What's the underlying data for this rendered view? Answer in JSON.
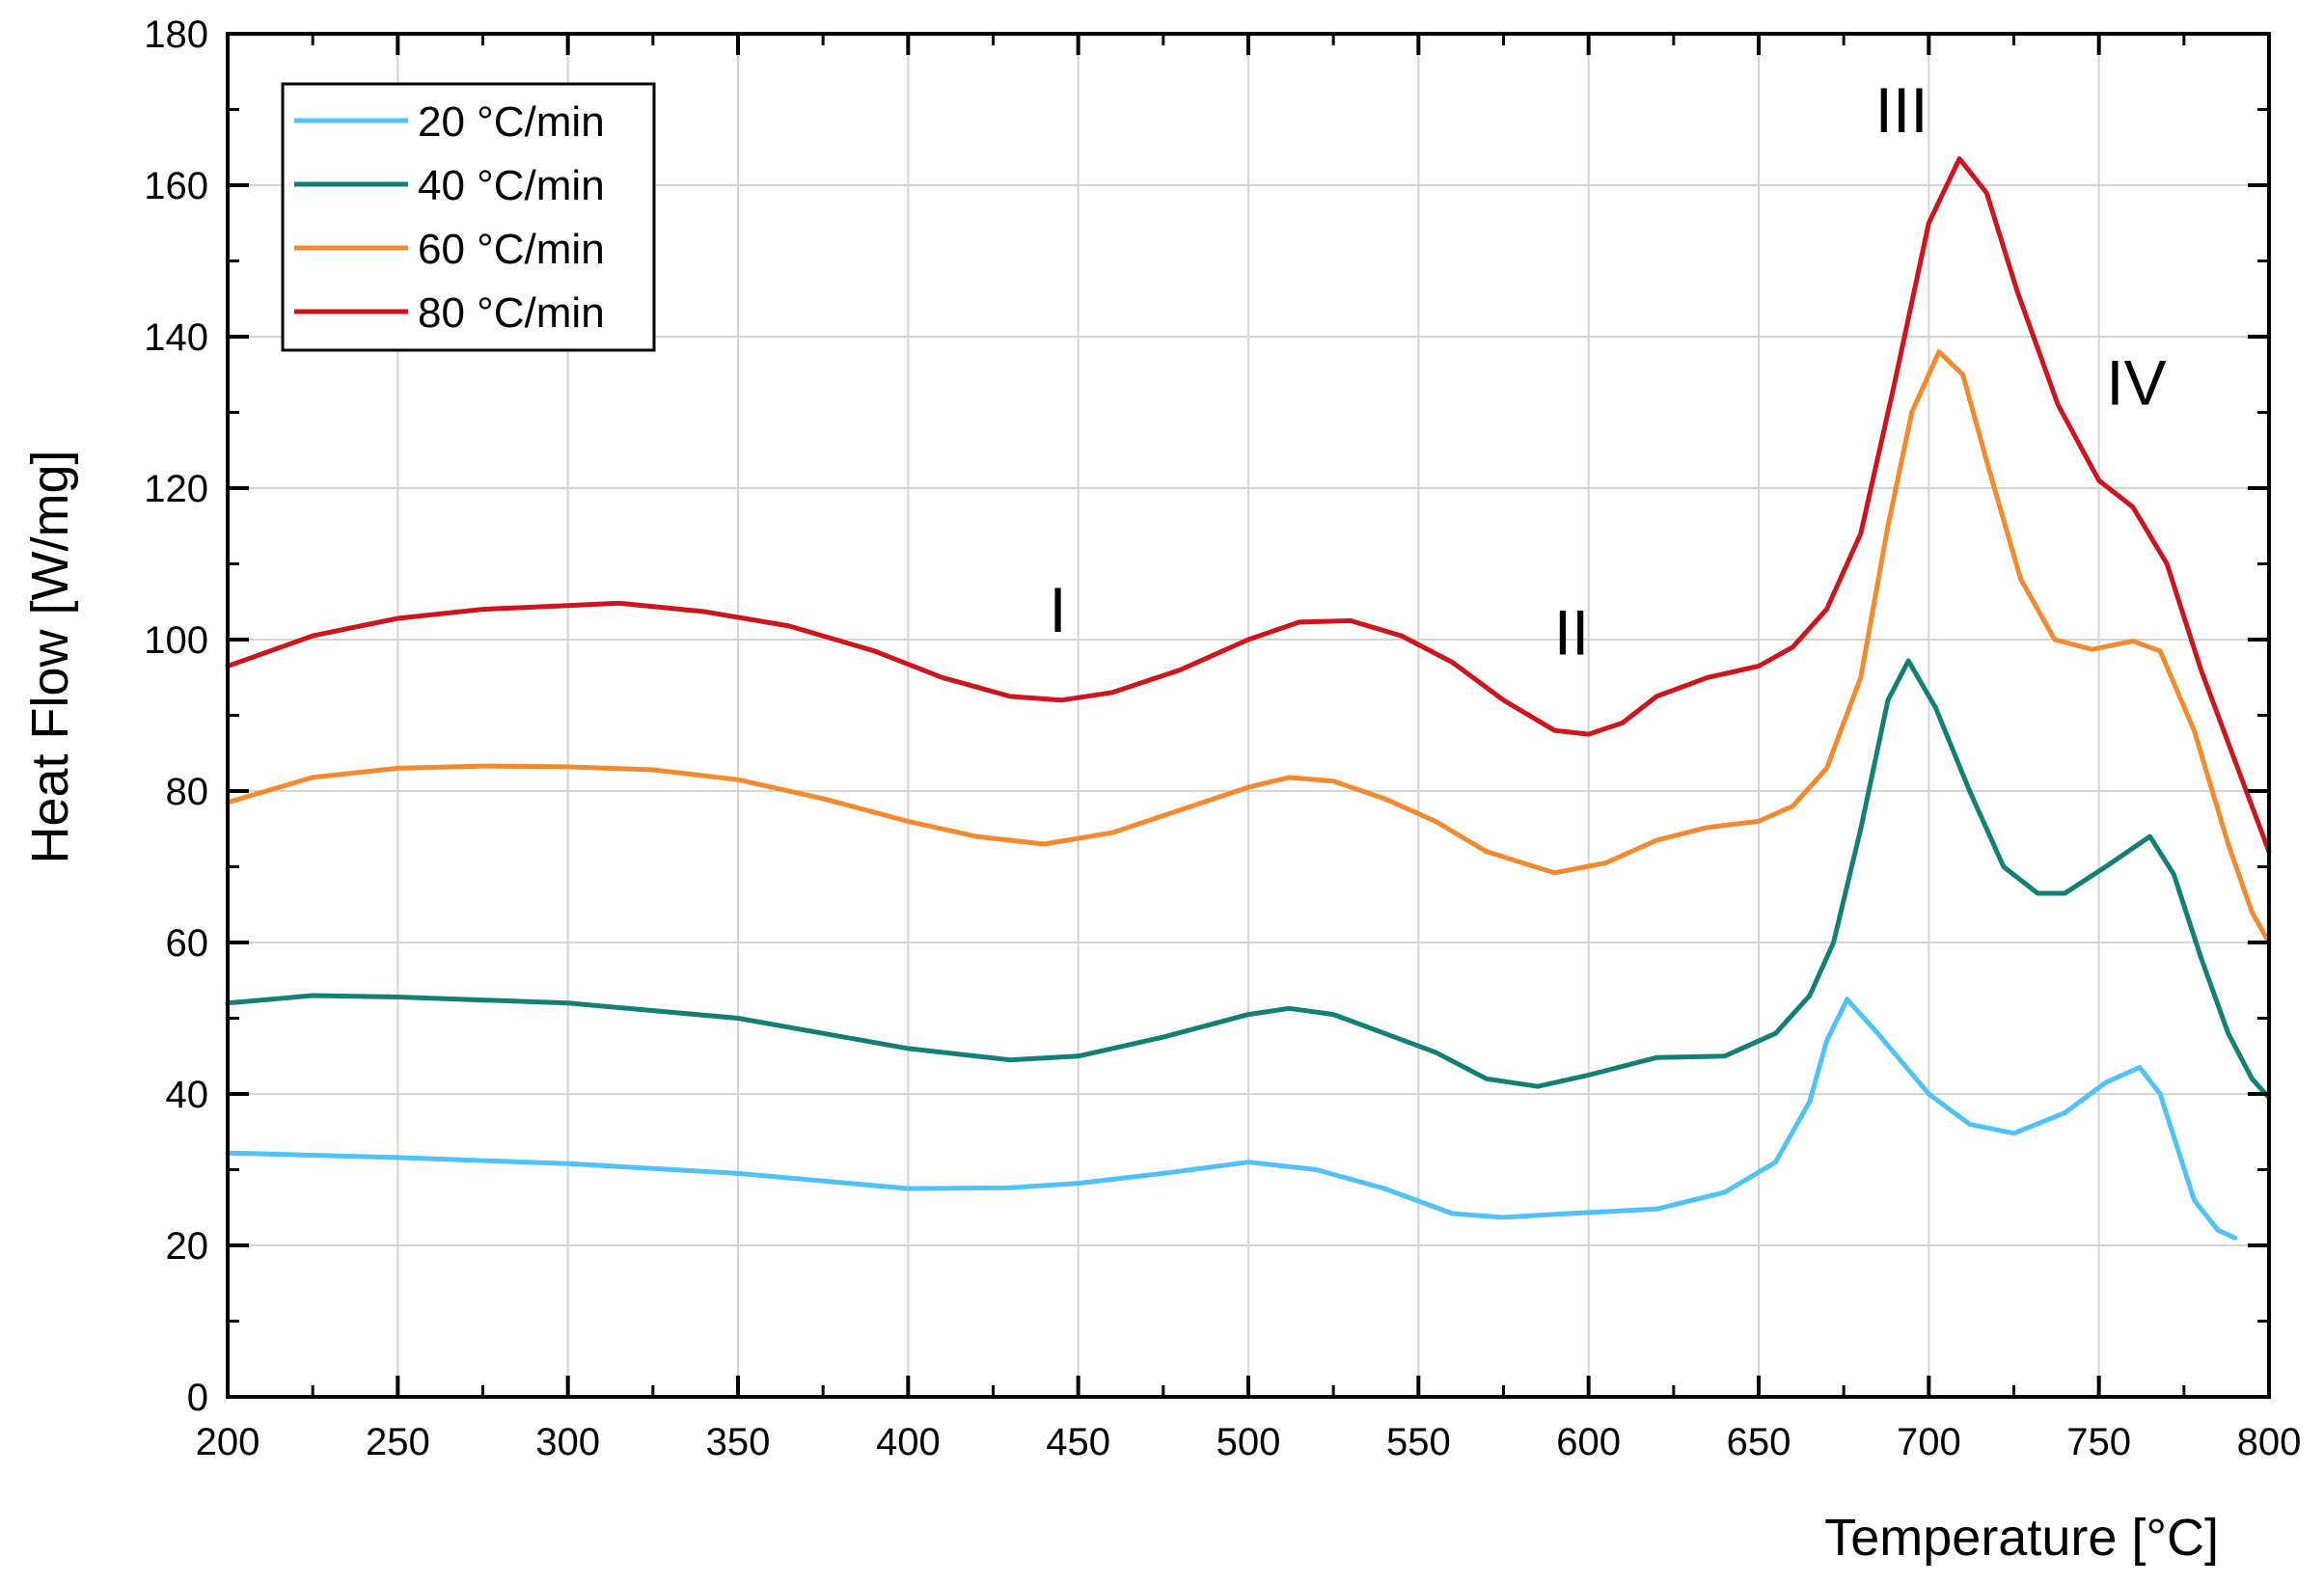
{
  "chart_data": {
    "type": "line",
    "title": "",
    "xlabel": "Temperature [°C]",
    "ylabel": "Heat Flow [W/mg]",
    "xlim": [
      200,
      800
    ],
    "ylim": [
      0,
      180
    ],
    "xticks": [
      200,
      250,
      300,
      350,
      400,
      450,
      500,
      550,
      600,
      650,
      700,
      750,
      800
    ],
    "yticks": [
      0,
      20,
      40,
      60,
      80,
      100,
      120,
      140,
      160,
      180
    ],
    "grid": true,
    "legend_position": "top-left",
    "series": [
      {
        "name": "20 °C/min",
        "color": "#4FC3F7",
        "points": [
          [
            200,
            32.2
          ],
          [
            250,
            31.6
          ],
          [
            300,
            30.8
          ],
          [
            350,
            29.5
          ],
          [
            400,
            27.5
          ],
          [
            430,
            27.6
          ],
          [
            450,
            28.2
          ],
          [
            475,
            29.5
          ],
          [
            500,
            31.0
          ],
          [
            520,
            30.0
          ],
          [
            540,
            27.5
          ],
          [
            560,
            24.2
          ],
          [
            575,
            23.7
          ],
          [
            590,
            24.1
          ],
          [
            620,
            24.8
          ],
          [
            640,
            27.0
          ],
          [
            655,
            31.0
          ],
          [
            665,
            39.0
          ],
          [
            670,
            47.0
          ],
          [
            676,
            52.5
          ],
          [
            685,
            48.0
          ],
          [
            700,
            40.0
          ],
          [
            712,
            36.0
          ],
          [
            725,
            34.8
          ],
          [
            740,
            37.5
          ],
          [
            752,
            41.5
          ],
          [
            762,
            43.5
          ],
          [
            768,
            40.0
          ],
          [
            773,
            33.0
          ],
          [
            778,
            26.0
          ],
          [
            785,
            22.0
          ],
          [
            790,
            21.0
          ]
        ]
      },
      {
        "name": "40 °C/min",
        "color": "#138075",
        "points": [
          [
            200,
            52.0
          ],
          [
            225,
            53.0
          ],
          [
            250,
            52.8
          ],
          [
            300,
            52.0
          ],
          [
            350,
            50.0
          ],
          [
            400,
            46.0
          ],
          [
            430,
            44.5
          ],
          [
            450,
            45.0
          ],
          [
            475,
            47.5
          ],
          [
            500,
            50.5
          ],
          [
            512,
            51.3
          ],
          [
            525,
            50.5
          ],
          [
            540,
            48.0
          ],
          [
            555,
            45.5
          ],
          [
            570,
            42.0
          ],
          [
            585,
            41.0
          ],
          [
            600,
            42.5
          ],
          [
            620,
            44.8
          ],
          [
            640,
            45.0
          ],
          [
            655,
            48.0
          ],
          [
            665,
            53.0
          ],
          [
            672,
            60.0
          ],
          [
            680,
            75.0
          ],
          [
            688,
            92.0
          ],
          [
            694,
            97.2
          ],
          [
            702,
            91.0
          ],
          [
            712,
            80.0
          ],
          [
            722,
            70.0
          ],
          [
            732,
            66.5
          ],
          [
            740,
            66.5
          ],
          [
            752,
            70.0
          ],
          [
            765,
            74.0
          ],
          [
            772,
            69.0
          ],
          [
            780,
            58.0
          ],
          [
            788,
            48.0
          ],
          [
            795,
            42.0
          ],
          [
            800,
            39.5
          ]
        ]
      },
      {
        "name": "60 °C/min",
        "color": "#F5892E",
        "points": [
          [
            200,
            78.5
          ],
          [
            225,
            81.8
          ],
          [
            250,
            83.0
          ],
          [
            275,
            83.3
          ],
          [
            300,
            83.2
          ],
          [
            325,
            82.8
          ],
          [
            350,
            81.5
          ],
          [
            375,
            79.0
          ],
          [
            400,
            76.0
          ],
          [
            420,
            74.0
          ],
          [
            440,
            73.0
          ],
          [
            460,
            74.5
          ],
          [
            480,
            77.5
          ],
          [
            500,
            80.5
          ],
          [
            512,
            81.8
          ],
          [
            525,
            81.3
          ],
          [
            540,
            79.0
          ],
          [
            555,
            76.0
          ],
          [
            570,
            72.0
          ],
          [
            590,
            69.2
          ],
          [
            605,
            70.5
          ],
          [
            620,
            73.5
          ],
          [
            635,
            75.2
          ],
          [
            650,
            76.0
          ],
          [
            660,
            78.0
          ],
          [
            670,
            83.0
          ],
          [
            680,
            95.0
          ],
          [
            688,
            115.0
          ],
          [
            695,
            130.0
          ],
          [
            703,
            138.0
          ],
          [
            710,
            135.0
          ],
          [
            718,
            122.0
          ],
          [
            727,
            108.0
          ],
          [
            737,
            100.0
          ],
          [
            748,
            98.7
          ],
          [
            760,
            99.8
          ],
          [
            768,
            98.5
          ],
          [
            778,
            88.0
          ],
          [
            788,
            73.0
          ],
          [
            795,
            64.0
          ],
          [
            800,
            60.0
          ]
        ]
      },
      {
        "name": "80 °C/min",
        "color": "#CE141C",
        "points": [
          [
            200,
            96.5
          ],
          [
            225,
            100.5
          ],
          [
            250,
            102.8
          ],
          [
            275,
            104.0
          ],
          [
            300,
            104.5
          ],
          [
            315,
            104.8
          ],
          [
            340,
            103.7
          ],
          [
            365,
            101.8
          ],
          [
            390,
            98.5
          ],
          [
            410,
            95.0
          ],
          [
            430,
            92.5
          ],
          [
            445,
            92.0
          ],
          [
            460,
            93.0
          ],
          [
            480,
            96.0
          ],
          [
            500,
            100.0
          ],
          [
            515,
            102.3
          ],
          [
            530,
            102.5
          ],
          [
            545,
            100.5
          ],
          [
            560,
            97.0
          ],
          [
            575,
            92.0
          ],
          [
            590,
            88.0
          ],
          [
            600,
            87.5
          ],
          [
            610,
            89.0
          ],
          [
            620,
            92.5
          ],
          [
            635,
            95.0
          ],
          [
            650,
            96.5
          ],
          [
            660,
            99.0
          ],
          [
            670,
            104.0
          ],
          [
            680,
            114.0
          ],
          [
            690,
            134.0
          ],
          [
            700,
            155.0
          ],
          [
            709,
            163.5
          ],
          [
            717,
            159.0
          ],
          [
            726,
            146.0
          ],
          [
            738,
            131.0
          ],
          [
            750,
            121.0
          ],
          [
            760,
            117.5
          ],
          [
            770,
            110.0
          ],
          [
            780,
            96.0
          ],
          [
            790,
            84.0
          ],
          [
            800,
            72.0
          ]
        ]
      }
    ],
    "annotations": [
      {
        "text": "I",
        "x": 444,
        "y": 101
      },
      {
        "text": "II",
        "x": 595,
        "y": 98
      },
      {
        "text": "III",
        "x": 692,
        "y": 167
      },
      {
        "text": "IV",
        "x": 761,
        "y": 131
      }
    ]
  }
}
